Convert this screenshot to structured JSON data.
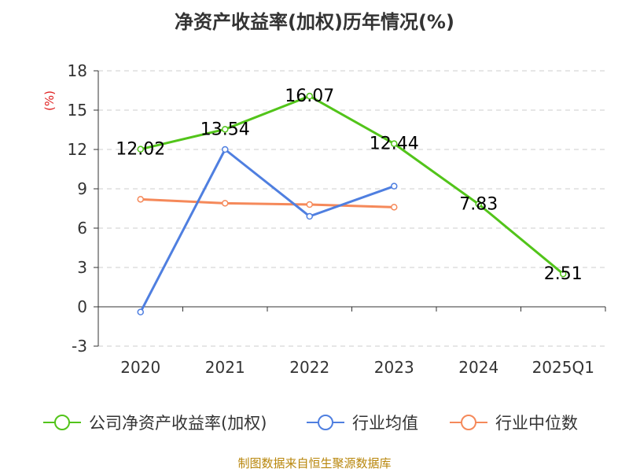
{
  "title": "净资产收益率(加权)历年情况(%)",
  "source": "制图数据来自恒生聚源数据库",
  "unit_label": "(%)",
  "colors": {
    "company": "#52c41a",
    "avg": "#4f7fe0",
    "median": "#f5895a",
    "grid": "#cccccc",
    "axis": "#333333",
    "unit": "#e02020",
    "source": "#b8860b"
  },
  "chart_data": {
    "type": "line",
    "categories": [
      "2020",
      "2021",
      "2022",
      "2023",
      "2024",
      "2025Q1"
    ],
    "ylim": [
      -3,
      18
    ],
    "yticks": [
      -3,
      0,
      3,
      6,
      9,
      12,
      15,
      18
    ],
    "grid": true,
    "legend_placement": "bottom",
    "series": [
      {
        "name": "公司净资产收益率(加权)",
        "values": [
          12.02,
          13.54,
          16.07,
          12.44,
          7.83,
          2.51
        ],
        "labels": [
          "12.02",
          "13.54",
          "16.07",
          "12.44",
          "7.83",
          "2.51"
        ],
        "color": "company"
      },
      {
        "name": "行业均值",
        "values": [
          -0.4,
          12.0,
          6.9,
          9.2,
          null,
          null
        ],
        "color": "avg"
      },
      {
        "name": "行业中位数",
        "values": [
          8.2,
          7.9,
          7.8,
          7.6,
          null,
          null
        ],
        "color": "median"
      }
    ]
  }
}
